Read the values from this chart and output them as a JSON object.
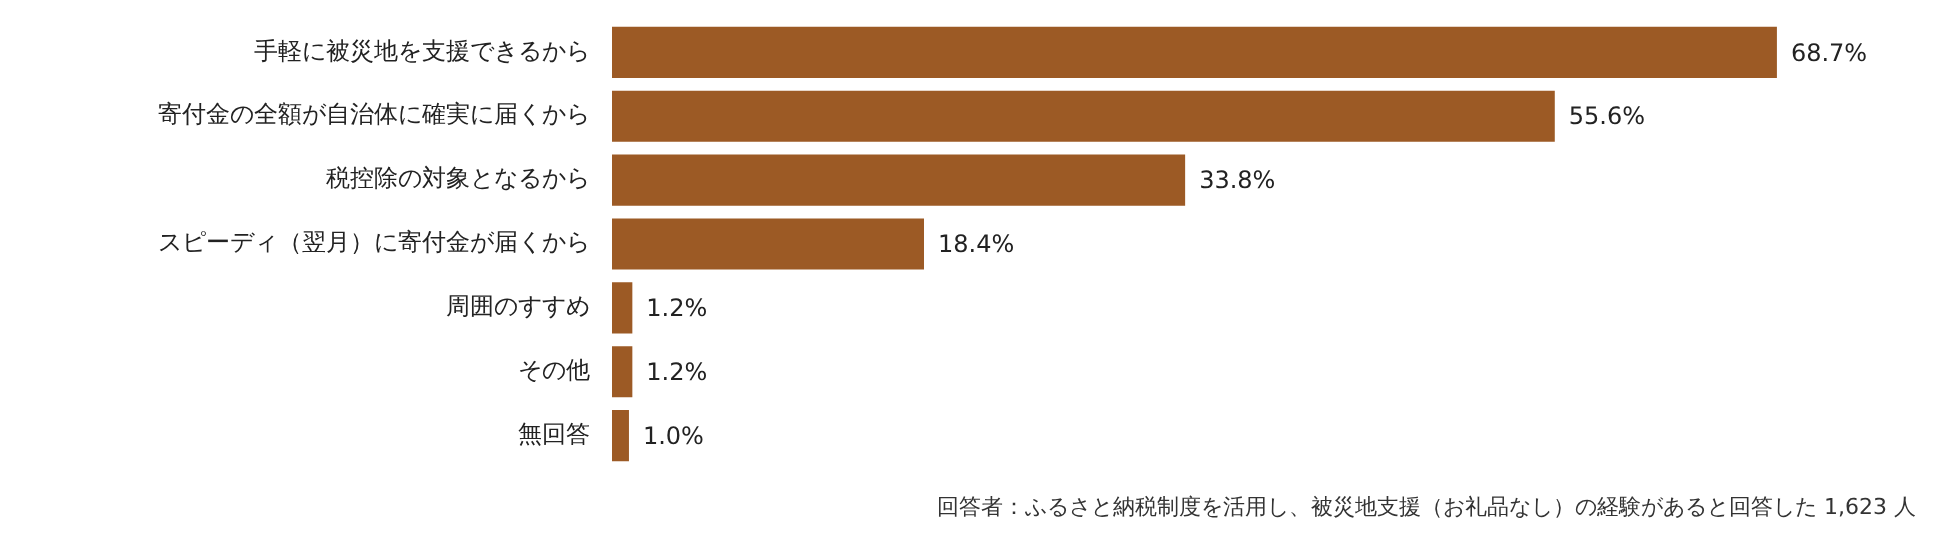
{
  "chart_data": {
    "type": "bar",
    "orientation": "horizontal",
    "categories": [
      "手軽に被災地を支援できるから",
      "寄付金の全額が自治体に確実に届くから",
      "税控除の対象となるから",
      "スピーディ（翌月）に寄付金が届くから",
      "周囲のすすめ",
      "その他",
      "無回答"
    ],
    "values": [
      68.7,
      55.6,
      33.8,
      18.4,
      1.2,
      1.2,
      1.0
    ],
    "value_labels": [
      "68.7%",
      "55.6%",
      "33.8%",
      "18.4%",
      "1.2%",
      "1.2%",
      "1.0%"
    ],
    "color": "#9c5a25",
    "legend": false,
    "annotations": [
      "回答者：ふるさと納税制度を活用し、被災地支援（お礼品なし）の経験があると回答した 1,623 人"
    ]
  }
}
